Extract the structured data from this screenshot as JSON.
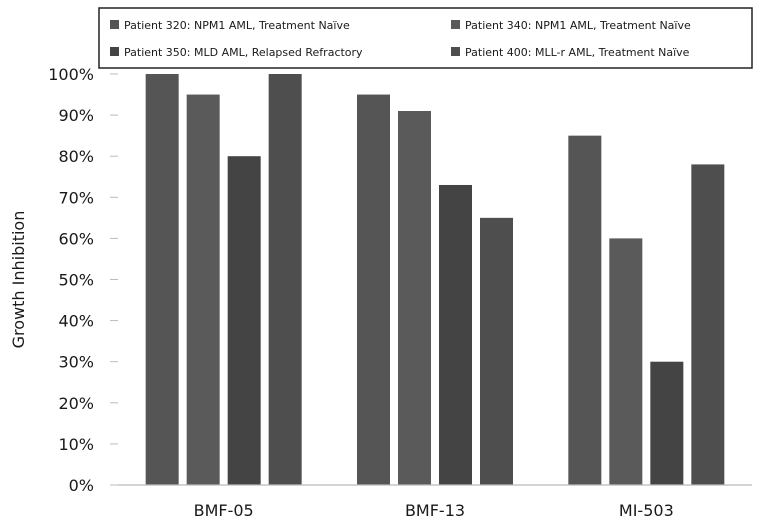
{
  "chart_data": {
    "type": "bar",
    "categories": [
      "BMF-05",
      "BMF-13",
      "MI-503"
    ],
    "series": [
      {
        "name": "Patient 320: NPM1 AML, Treatment Naïve",
        "values": [
          100,
          95,
          85
        ],
        "color": "#555555"
      },
      {
        "name": "Patient 340: NPM1 AML, Treatment Naïve",
        "values": [
          95,
          91,
          60
        ],
        "color": "#5a5a5a"
      },
      {
        "name": "Patient 350: MLD AML, Relapsed Refractory",
        "values": [
          80,
          73,
          30
        ],
        "color": "#444444"
      },
      {
        "name": "Patient 400: MLL-r AML, Treatment Naïve",
        "values": [
          100,
          65,
          78
        ],
        "color": "#4e4e4e"
      }
    ],
    "ylabel": "Growth Inhibition",
    "xlabel": "",
    "ylim": [
      0,
      100
    ],
    "yticks": [
      "0%",
      "10%",
      "20%",
      "30%",
      "40%",
      "50%",
      "60%",
      "70%",
      "80%",
      "90%",
      "100%"
    ],
    "grid": false,
    "legend_position": "top"
  }
}
